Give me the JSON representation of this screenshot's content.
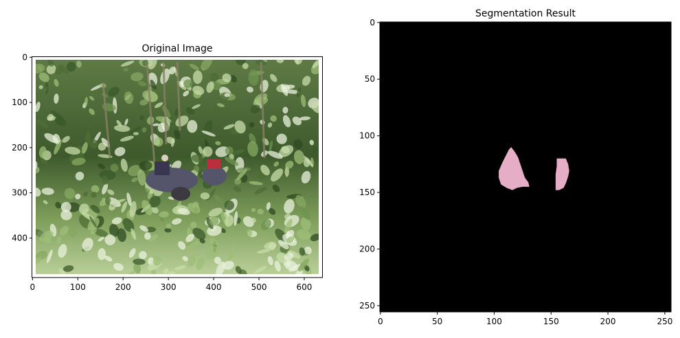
{
  "chart_data": [
    {
      "type": "image",
      "title": "Original Image",
      "content": "photo",
      "xlim": [
        -0.5,
        639.5
      ],
      "ylim": [
        487.5,
        -0.5
      ],
      "xticks": [
        0,
        100,
        200,
        300,
        400,
        500,
        600
      ],
      "yticks": [
        0,
        100,
        200,
        300,
        400
      ],
      "grid": false
    },
    {
      "type": "heatmap",
      "title": "Segmentation Result",
      "xlim": [
        -0.5,
        255.5
      ],
      "ylim": [
        255.5,
        -0.5
      ],
      "xticks": [
        0,
        50,
        100,
        150,
        200,
        250
      ],
      "yticks": [
        0,
        50,
        100,
        150,
        200,
        250
      ],
      "grid": false,
      "background_color": "#000000",
      "mask_color": "#e6aec6",
      "regions": [
        {
          "polygon": [
            [
              115,
              110
            ],
            [
              118,
              114
            ],
            [
              121,
              119
            ],
            [
              123,
              125
            ],
            [
              125,
              131
            ],
            [
              127,
              137
            ],
            [
              130,
              141
            ],
            [
              131,
              145
            ],
            [
              125,
              145
            ],
            [
              120,
              146
            ],
            [
              116,
              148
            ],
            [
              111,
              146
            ],
            [
              106,
              143
            ],
            [
              104,
              137
            ],
            [
              104,
              131
            ],
            [
              107,
              124
            ],
            [
              110,
              118
            ],
            [
              113,
              112
            ]
          ]
        },
        {
          "polygon": [
            [
              155,
              120
            ],
            [
              163,
              120
            ],
            [
              165,
              125
            ],
            [
              166,
              131
            ],
            [
              165,
              136
            ],
            [
              163,
              142
            ],
            [
              161,
              146
            ],
            [
              157,
              148
            ],
            [
              154,
              148
            ],
            [
              154,
              140
            ],
            [
              154,
              134
            ],
            [
              155,
              127
            ]
          ]
        }
      ]
    }
  ]
}
